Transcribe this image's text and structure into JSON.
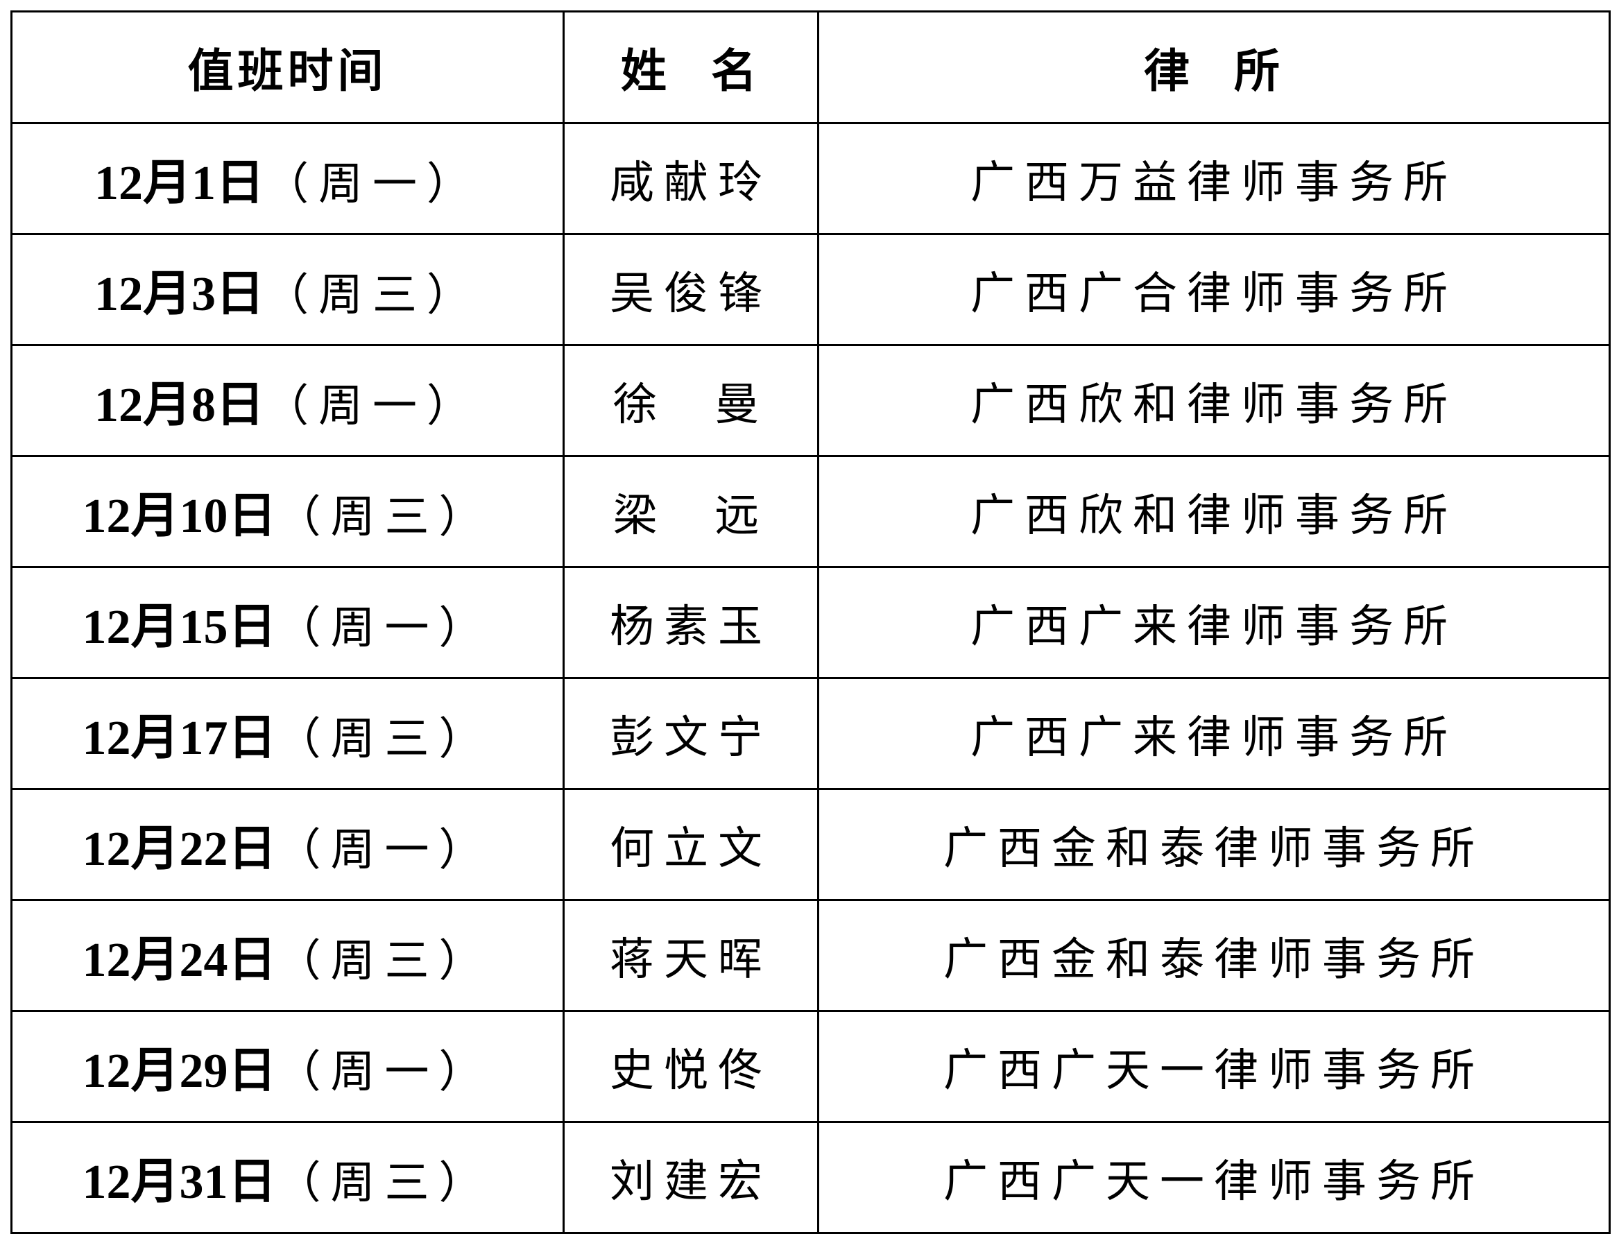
{
  "table": {
    "headers": [
      "值班时间",
      "姓  名",
      "律  所"
    ],
    "rows": [
      {
        "date": "12月1日",
        "weekday": "（周一）",
        "name": "咸献玲",
        "firm": "广西万益律师事务所"
      },
      {
        "date": "12月3日",
        "weekday": "（周三）",
        "name": "吴俊锋",
        "firm": "广西广合律师事务所"
      },
      {
        "date": "12月8日",
        "weekday": "（周一）",
        "name": "徐  曼",
        "firm": "广西欣和律师事务所"
      },
      {
        "date": "12月10日",
        "weekday": "（周三）",
        "name": "梁  远",
        "firm": "广西欣和律师事务所"
      },
      {
        "date": "12月15日",
        "weekday": "（周一）",
        "name": "杨素玉",
        "firm": "广西广来律师事务所"
      },
      {
        "date": "12月17日",
        "weekday": "（周三）",
        "name": "彭文宁",
        "firm": "广西广来律师事务所"
      },
      {
        "date": "12月22日",
        "weekday": "（周一）",
        "name": "何立文",
        "firm": "广西金和泰律师事务所"
      },
      {
        "date": "12月24日",
        "weekday": "（周三）",
        "name": "蒋天晖",
        "firm": "广西金和泰律师事务所"
      },
      {
        "date": "12月29日",
        "weekday": "（周一）",
        "name": "史悦佟",
        "firm": "广西广天一律师事务所"
      },
      {
        "date": "12月31日",
        "weekday": "（周三）",
        "name": "刘建宏",
        "firm": "广西广天一律师事务所"
      }
    ]
  }
}
